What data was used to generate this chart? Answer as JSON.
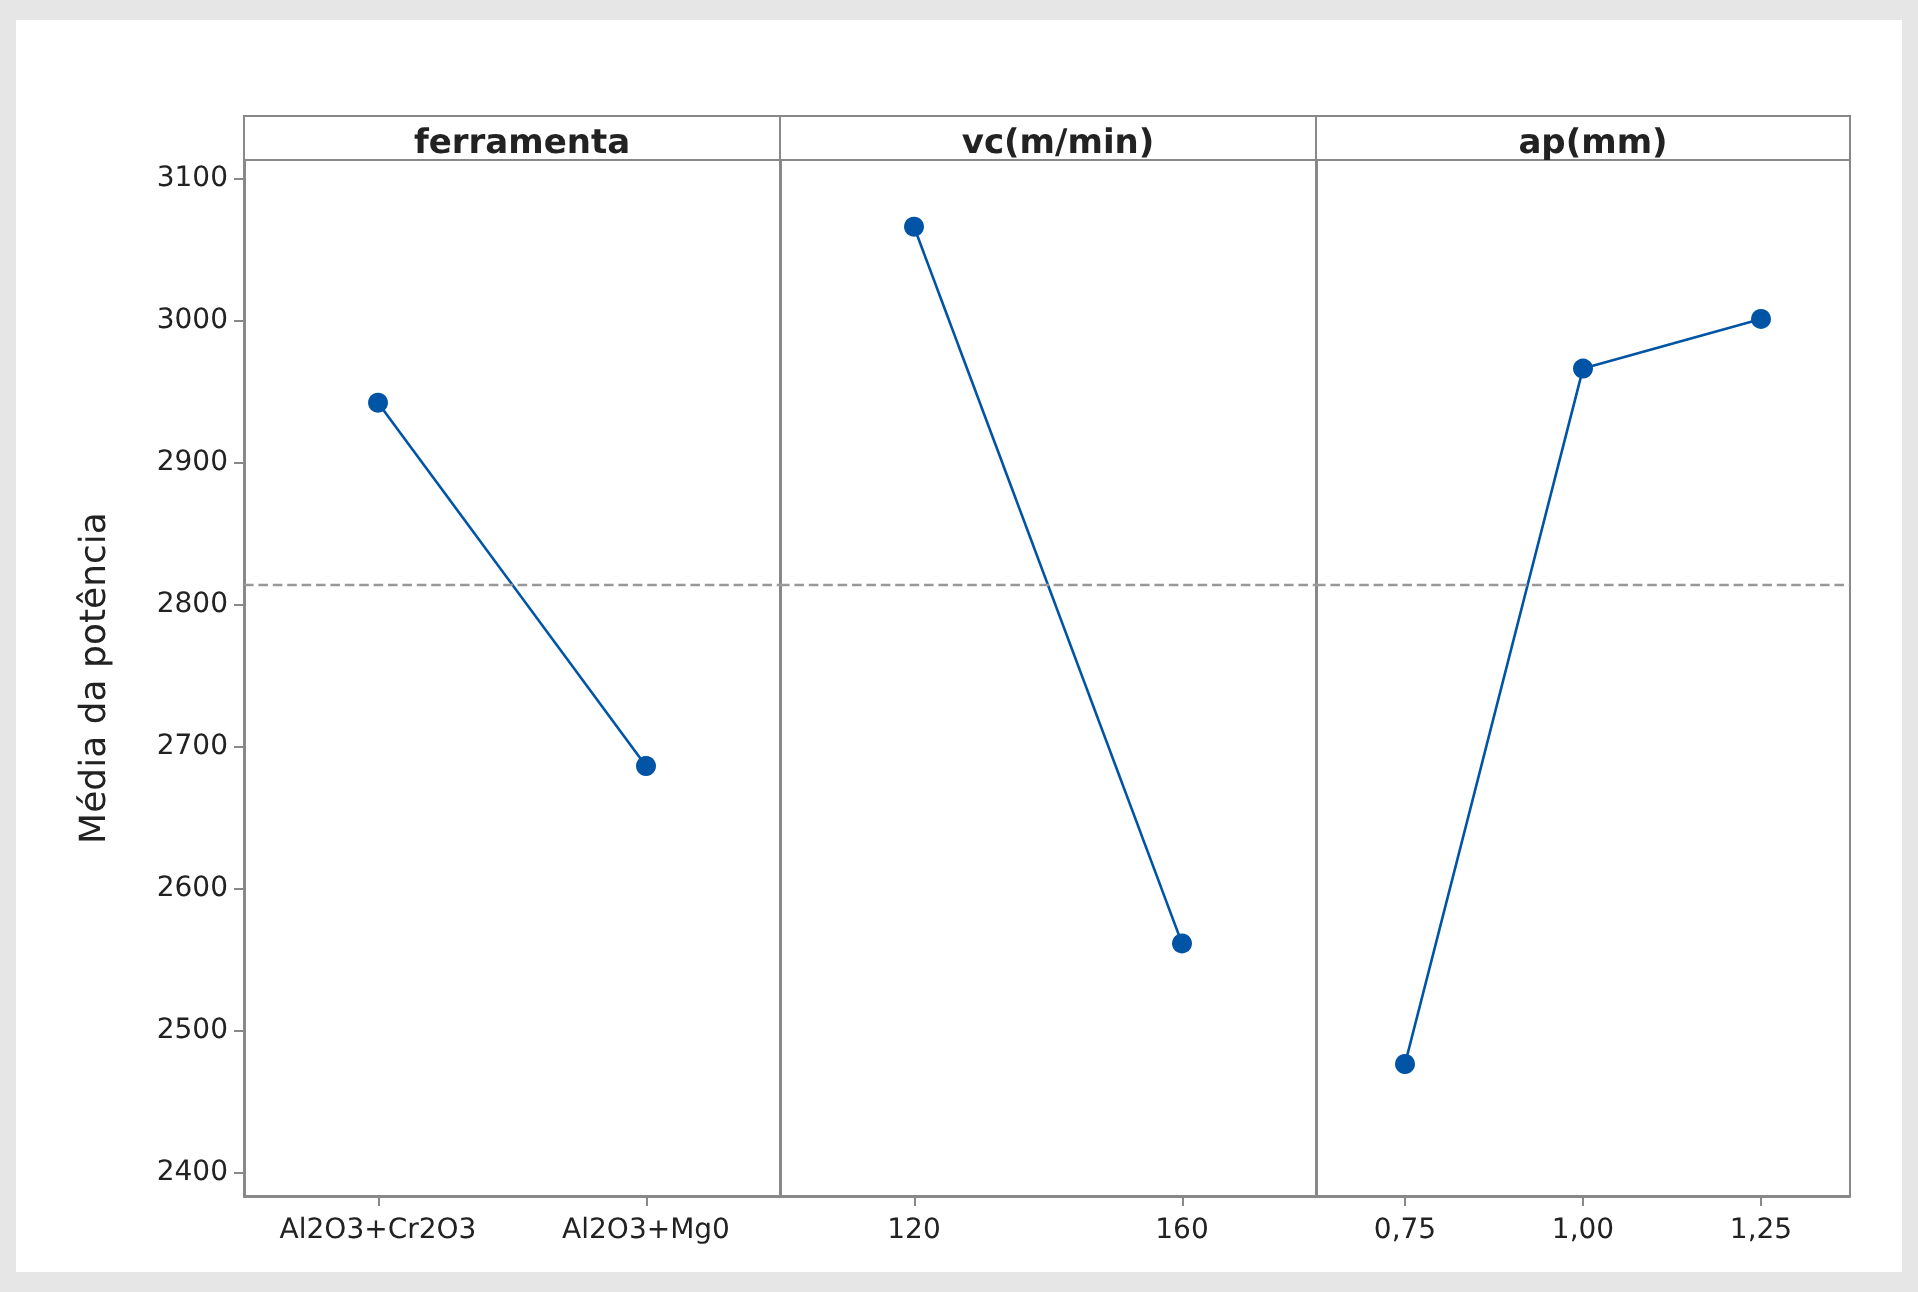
{
  "chart_data": [
    {
      "type": "line",
      "title": "ferramenta",
      "ylabel": "Média da potência",
      "categories": [
        "Al2O3+Cr2O3",
        "Al2O3+Mg0"
      ],
      "values": [
        2942,
        2686
      ],
      "color": "#0054a6",
      "marker": "circle",
      "ylim": [
        2383,
        3113
      ],
      "yticks": [
        2400,
        2500,
        2600,
        2700,
        2800,
        2900,
        3000,
        3100
      ],
      "ref_lines": [
        {
          "axis": "y",
          "value": 2814,
          "color": "#999999",
          "line_style": "dashed"
        }
      ]
    },
    {
      "type": "line",
      "title": "vc(m/min)",
      "categories": [
        "120",
        "160"
      ],
      "values": [
        3066,
        2561
      ],
      "color": "#0054a6",
      "marker": "circle",
      "ylim": [
        2383,
        3113
      ],
      "yticks": [
        2400,
        2500,
        2600,
        2700,
        2800,
        2900,
        3000,
        3100
      ],
      "ref_lines": [
        {
          "axis": "y",
          "value": 2814,
          "color": "#999999",
          "line_style": "dashed"
        }
      ],
      "tick_labels": "x"
    },
    {
      "type": "line",
      "title": "ap(mm)",
      "categories": [
        "0,75",
        "1,00",
        "1,25"
      ],
      "values": [
        2476,
        2966,
        3001
      ],
      "color": "#0054a6",
      "marker": "circle",
      "ylim": [
        2383,
        3113
      ],
      "yticks": [
        2400,
        2500,
        2600,
        2700,
        2800,
        2900,
        3000,
        3100
      ],
      "ref_lines": [
        {
          "axis": "y",
          "value": 2814,
          "color": "#999999",
          "line_style": "dashed"
        }
      ],
      "tick_labels": "x"
    }
  ]
}
